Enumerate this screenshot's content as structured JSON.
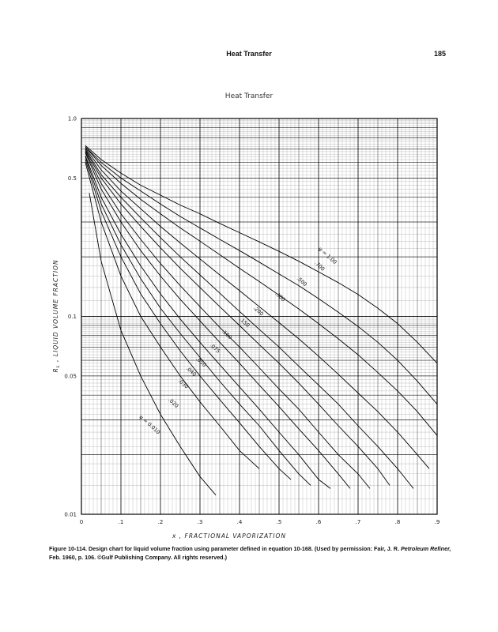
{
  "header": {
    "running_title": "Heat Transfer",
    "page_number": "185"
  },
  "chart_data": {
    "type": "line",
    "title": "Heat Transfer",
    "xlabel": "x , FRACTIONAL VAPORIZATION",
    "ylabel": "R",
    "ylabel_subscript": "L",
    "ylabel_rest": " , LIQUID VOLUME FRACTION",
    "xlim": [
      0,
      0.9
    ],
    "ylim": [
      0.01,
      1.0
    ],
    "yscale": "log",
    "x_ticks": [
      {
        "value": 0,
        "label": "0"
      },
      {
        "value": 0.1,
        "label": ".1"
      },
      {
        "value": 0.2,
        "label": ".2"
      },
      {
        "value": 0.3,
        "label": ".3"
      },
      {
        "value": 0.4,
        "label": ".4"
      },
      {
        "value": 0.5,
        "label": ".5"
      },
      {
        "value": 0.6,
        "label": ".6"
      },
      {
        "value": 0.7,
        "label": ".7"
      },
      {
        "value": 0.8,
        "label": ".8"
      },
      {
        "value": 0.9,
        "label": ".9"
      }
    ],
    "y_ticks": [
      {
        "value": 1.0,
        "label": "1.0"
      },
      {
        "value": 0.5,
        "label": "0.5"
      },
      {
        "value": 0.1,
        "label": "0.1"
      },
      {
        "value": 0.05,
        "label": "0.05"
      },
      {
        "value": 0.01,
        "label": "0.01"
      }
    ],
    "grid": true,
    "series": [
      {
        "name": "ψ = 0.010",
        "label": "ψ = 0.010",
        "label_at": [
          0.17,
          0.028
        ],
        "points": [
          [
            0.02,
            0.42
          ],
          [
            0.05,
            0.19
          ],
          [
            0.1,
            0.085
          ],
          [
            0.15,
            0.05
          ],
          [
            0.2,
            0.032
          ],
          [
            0.25,
            0.022
          ],
          [
            0.3,
            0.0155
          ],
          [
            0.34,
            0.0125
          ]
        ]
      },
      {
        "name": "0.020",
        "label": ".020",
        "label_at": [
          0.23,
          0.036
        ],
        "points": [
          [
            0.01,
            0.6
          ],
          [
            0.05,
            0.3
          ],
          [
            0.1,
            0.16
          ],
          [
            0.15,
            0.1
          ],
          [
            0.2,
            0.07
          ],
          [
            0.25,
            0.05
          ],
          [
            0.3,
            0.037
          ],
          [
            0.35,
            0.028
          ],
          [
            0.4,
            0.021
          ],
          [
            0.45,
            0.017
          ]
        ]
      },
      {
        "name": "0.030",
        "label": ".030",
        "label_at": [
          0.255,
          0.045
        ],
        "points": [
          [
            0.01,
            0.62
          ],
          [
            0.05,
            0.34
          ],
          [
            0.1,
            0.2
          ],
          [
            0.15,
            0.13
          ],
          [
            0.2,
            0.092
          ],
          [
            0.25,
            0.067
          ],
          [
            0.3,
            0.05
          ],
          [
            0.35,
            0.038
          ],
          [
            0.4,
            0.029
          ],
          [
            0.45,
            0.022
          ],
          [
            0.5,
            0.017
          ],
          [
            0.53,
            0.015
          ]
        ]
      },
      {
        "name": "0.040",
        "label": ".040",
        "label_at": [
          0.275,
          0.052
        ],
        "points": [
          [
            0.01,
            0.64
          ],
          [
            0.05,
            0.37
          ],
          [
            0.1,
            0.23
          ],
          [
            0.15,
            0.155
          ],
          [
            0.2,
            0.11
          ],
          [
            0.25,
            0.082
          ],
          [
            0.3,
            0.062
          ],
          [
            0.35,
            0.047
          ],
          [
            0.4,
            0.036
          ],
          [
            0.45,
            0.028
          ],
          [
            0.5,
            0.021
          ],
          [
            0.55,
            0.016
          ],
          [
            0.58,
            0.014
          ]
        ]
      },
      {
        "name": "0.050",
        "label": ".050",
        "label_at": [
          0.3,
          0.058
        ],
        "points": [
          [
            0.01,
            0.65
          ],
          [
            0.05,
            0.4
          ],
          [
            0.1,
            0.26
          ],
          [
            0.15,
            0.18
          ],
          [
            0.2,
            0.13
          ],
          [
            0.25,
            0.097
          ],
          [
            0.3,
            0.074
          ],
          [
            0.35,
            0.057
          ],
          [
            0.4,
            0.044
          ],
          [
            0.45,
            0.034
          ],
          [
            0.5,
            0.026
          ],
          [
            0.55,
            0.02
          ],
          [
            0.6,
            0.015
          ],
          [
            0.63,
            0.0135
          ]
        ]
      },
      {
        "name": "0.075",
        "label": ".075",
        "label_at": [
          0.335,
          0.068
        ],
        "points": [
          [
            0.01,
            0.67
          ],
          [
            0.05,
            0.44
          ],
          [
            0.1,
            0.3
          ],
          [
            0.15,
            0.215
          ],
          [
            0.2,
            0.16
          ],
          [
            0.25,
            0.122
          ],
          [
            0.3,
            0.095
          ],
          [
            0.35,
            0.074
          ],
          [
            0.4,
            0.058
          ],
          [
            0.45,
            0.045
          ],
          [
            0.5,
            0.035
          ],
          [
            0.55,
            0.027
          ],
          [
            0.6,
            0.021
          ],
          [
            0.65,
            0.016
          ],
          [
            0.68,
            0.0135
          ]
        ]
      },
      {
        "name": "0.100",
        "label": ".100",
        "label_at": [
          0.365,
          0.08
        ],
        "points": [
          [
            0.01,
            0.68
          ],
          [
            0.05,
            0.47
          ],
          [
            0.1,
            0.33
          ],
          [
            0.15,
            0.245
          ],
          [
            0.2,
            0.185
          ],
          [
            0.25,
            0.143
          ],
          [
            0.3,
            0.112
          ],
          [
            0.35,
            0.088
          ],
          [
            0.4,
            0.07
          ],
          [
            0.45,
            0.055
          ],
          [
            0.5,
            0.043
          ],
          [
            0.55,
            0.034
          ],
          [
            0.6,
            0.026
          ],
          [
            0.65,
            0.02
          ],
          [
            0.7,
            0.016
          ],
          [
            0.73,
            0.0135
          ]
        ]
      },
      {
        "name": "0.150",
        "label": ".150",
        "label_at": [
          0.41,
          0.092
        ],
        "points": [
          [
            0.01,
            0.69
          ],
          [
            0.05,
            0.5
          ],
          [
            0.1,
            0.37
          ],
          [
            0.15,
            0.285
          ],
          [
            0.2,
            0.222
          ],
          [
            0.25,
            0.175
          ],
          [
            0.3,
            0.14
          ],
          [
            0.35,
            0.112
          ],
          [
            0.4,
            0.09
          ],
          [
            0.45,
            0.072
          ],
          [
            0.5,
            0.058
          ],
          [
            0.55,
            0.046
          ],
          [
            0.6,
            0.036
          ],
          [
            0.65,
            0.028
          ],
          [
            0.7,
            0.022
          ],
          [
            0.75,
            0.017
          ],
          [
            0.78,
            0.014
          ]
        ]
      },
      {
        "name": "0.200",
        "label": ".200",
        "label_at": [
          0.445,
          0.105
        ],
        "points": [
          [
            0.01,
            0.7
          ],
          [
            0.05,
            0.52
          ],
          [
            0.1,
            0.4
          ],
          [
            0.15,
            0.315
          ],
          [
            0.2,
            0.25
          ],
          [
            0.25,
            0.2
          ],
          [
            0.3,
            0.162
          ],
          [
            0.35,
            0.131
          ],
          [
            0.4,
            0.106
          ],
          [
            0.45,
            0.086
          ],
          [
            0.5,
            0.07
          ],
          [
            0.55,
            0.056
          ],
          [
            0.6,
            0.045
          ],
          [
            0.65,
            0.036
          ],
          [
            0.7,
            0.028
          ],
          [
            0.75,
            0.022
          ],
          [
            0.8,
            0.017
          ],
          [
            0.84,
            0.0135
          ]
        ]
      },
      {
        "name": "0.300",
        "label": ".300",
        "label_at": [
          0.5,
          0.124
        ],
        "points": [
          [
            0.01,
            0.71
          ],
          [
            0.05,
            0.55
          ],
          [
            0.1,
            0.43
          ],
          [
            0.15,
            0.35
          ],
          [
            0.2,
            0.285
          ],
          [
            0.25,
            0.235
          ],
          [
            0.3,
            0.195
          ],
          [
            0.35,
            0.162
          ],
          [
            0.4,
            0.135
          ],
          [
            0.45,
            0.112
          ],
          [
            0.5,
            0.093
          ],
          [
            0.55,
            0.077
          ],
          [
            0.6,
            0.063
          ],
          [
            0.65,
            0.051
          ],
          [
            0.7,
            0.041
          ],
          [
            0.75,
            0.033
          ],
          [
            0.8,
            0.026
          ],
          [
            0.85,
            0.02
          ],
          [
            0.88,
            0.017
          ]
        ]
      },
      {
        "name": "0.500",
        "label": ".500",
        "label_at": [
          0.555,
          0.148
        ],
        "points": [
          [
            0.01,
            0.72
          ],
          [
            0.05,
            0.58
          ],
          [
            0.1,
            0.47
          ],
          [
            0.15,
            0.39
          ],
          [
            0.2,
            0.33
          ],
          [
            0.25,
            0.28
          ],
          [
            0.3,
            0.24
          ],
          [
            0.35,
            0.205
          ],
          [
            0.4,
            0.175
          ],
          [
            0.45,
            0.15
          ],
          [
            0.5,
            0.128
          ],
          [
            0.55,
            0.109
          ],
          [
            0.6,
            0.092
          ],
          [
            0.65,
            0.077
          ],
          [
            0.7,
            0.064
          ],
          [
            0.75,
            0.052
          ],
          [
            0.8,
            0.042
          ],
          [
            0.85,
            0.033
          ],
          [
            0.9,
            0.025
          ]
        ]
      },
      {
        "name": "0.700",
        "label": ".700",
        "label_at": [
          0.6,
          0.177
        ],
        "points": [
          [
            0.01,
            0.72
          ],
          [
            0.05,
            0.6
          ],
          [
            0.1,
            0.5
          ],
          [
            0.15,
            0.43
          ],
          [
            0.2,
            0.37
          ],
          [
            0.25,
            0.32
          ],
          [
            0.3,
            0.28
          ],
          [
            0.35,
            0.245
          ],
          [
            0.4,
            0.215
          ],
          [
            0.45,
            0.188
          ],
          [
            0.5,
            0.164
          ],
          [
            0.55,
            0.143
          ],
          [
            0.6,
            0.123
          ],
          [
            0.65,
            0.105
          ],
          [
            0.7,
            0.089
          ],
          [
            0.75,
            0.074
          ],
          [
            0.8,
            0.06
          ],
          [
            0.85,
            0.047
          ],
          [
            0.9,
            0.036
          ]
        ]
      },
      {
        "name": "ψ = 1.00",
        "label": "ψ = 1.00",
        "label_at": [
          0.62,
          0.2
        ],
        "points": [
          [
            0.01,
            0.73
          ],
          [
            0.05,
            0.62
          ],
          [
            0.1,
            0.53
          ],
          [
            0.15,
            0.46
          ],
          [
            0.2,
            0.41
          ],
          [
            0.25,
            0.365
          ],
          [
            0.3,
            0.33
          ],
          [
            0.35,
            0.295
          ],
          [
            0.4,
            0.265
          ],
          [
            0.45,
            0.238
          ],
          [
            0.5,
            0.213
          ],
          [
            0.55,
            0.19
          ],
          [
            0.6,
            0.168
          ],
          [
            0.65,
            0.148
          ],
          [
            0.7,
            0.129
          ],
          [
            0.75,
            0.11
          ],
          [
            0.8,
            0.092
          ],
          [
            0.85,
            0.074
          ],
          [
            0.9,
            0.058
          ]
        ]
      }
    ]
  },
  "caption": {
    "label": "Figure 10-114.",
    "text": " Design chart for liquid volume fraction using parameter defined in equation 10-168. (Used by permission: Fair, J. R. ",
    "journal": "Petroleum Refiner,",
    "rest": " Feb. 1960, p. 106. ©Gulf Publishing Company. All rights reserved.)"
  }
}
